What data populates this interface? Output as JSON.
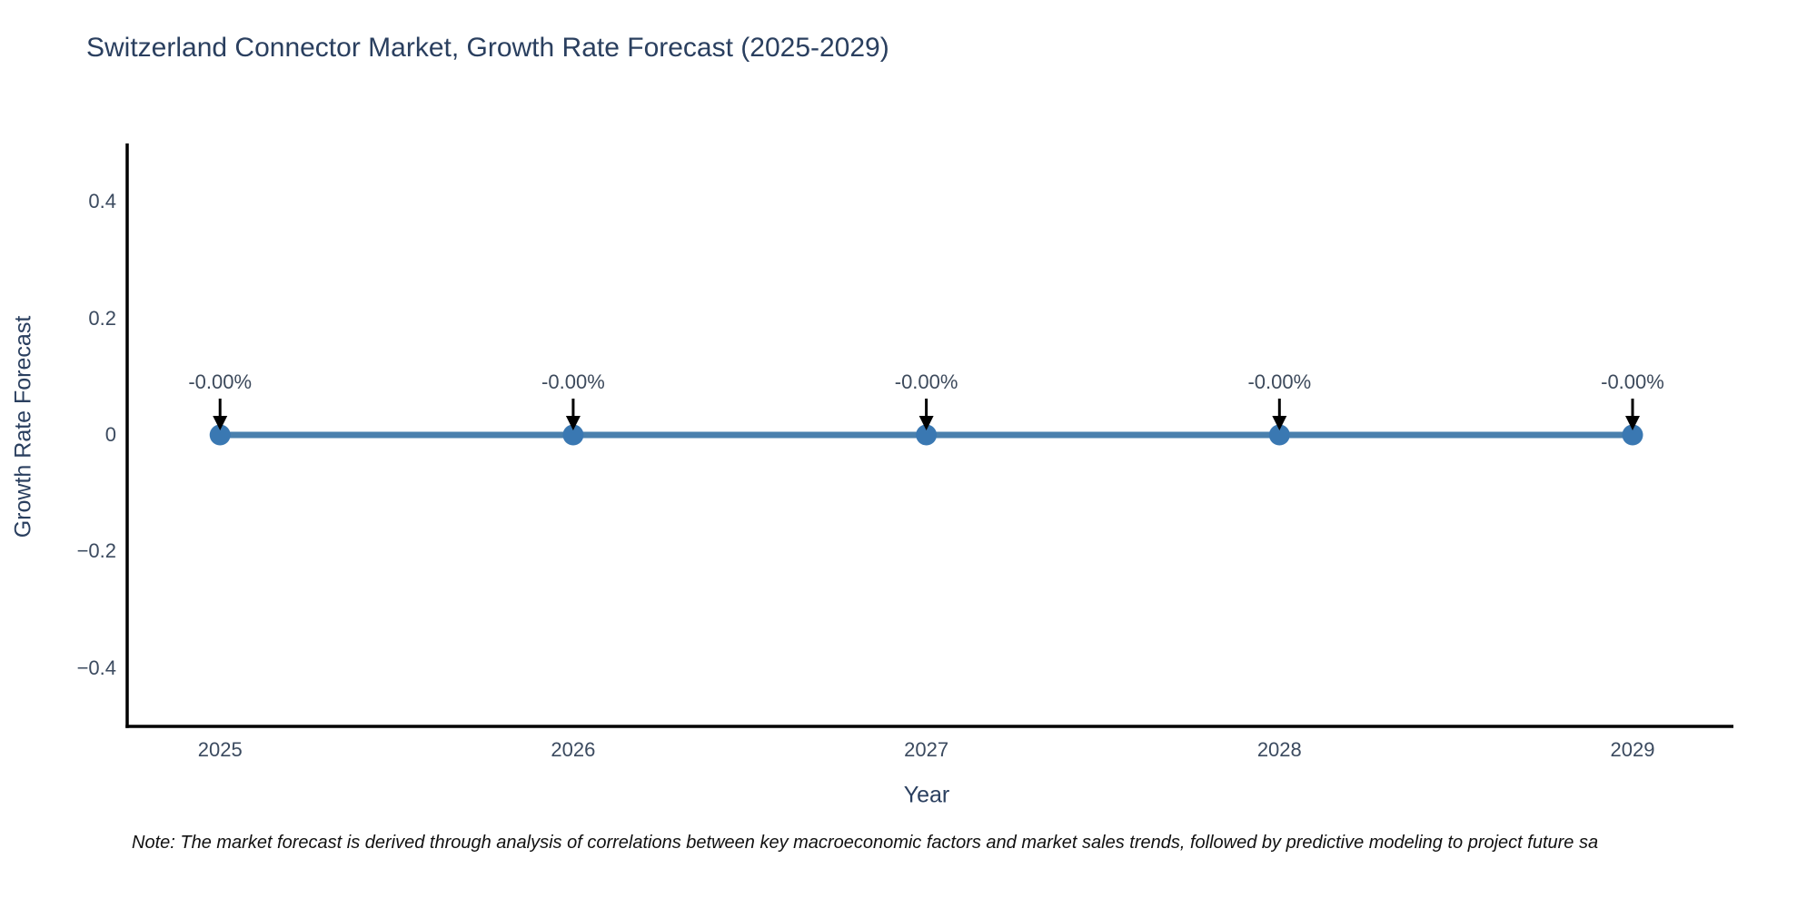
{
  "chart_data": {
    "type": "line",
    "title": "Switzerland Connector Market, Growth Rate Forecast (2025-2029)",
    "xlabel": "Year",
    "ylabel": "Growth Rate Forecast",
    "x": [
      2025,
      2026,
      2027,
      2028,
      2029
    ],
    "series": [
      {
        "name": "Growth Rate Forecast",
        "values": [
          0,
          0,
          0,
          0,
          0
        ],
        "point_labels": [
          "-0.00%",
          "-0.00%",
          "-0.00%",
          "-0.00%",
          "-0.00%"
        ]
      }
    ],
    "x_tick_labels": [
      "2025",
      "2026",
      "2027",
      "2028",
      "2029"
    ],
    "y_ticks": [
      0.4,
      0.2,
      0,
      -0.2,
      -0.4
    ],
    "y_tick_labels": [
      "0.4",
      "0.2",
      "0",
      "−0.2",
      "−0.4"
    ],
    "xlim": [
      2024.737,
      2029.283
    ],
    "ylim": [
      -0.5,
      0.5
    ],
    "grid": false,
    "legend": "none",
    "line_color": "#4a80ad",
    "marker_color": "#3a78b2",
    "axis_color": "#000000",
    "arrow_color": "#000000",
    "note": "Note: The market forecast is derived through analysis of correlations between key macroeconomic factors and market sales trends, followed by predictive modeling to project future sa"
  }
}
